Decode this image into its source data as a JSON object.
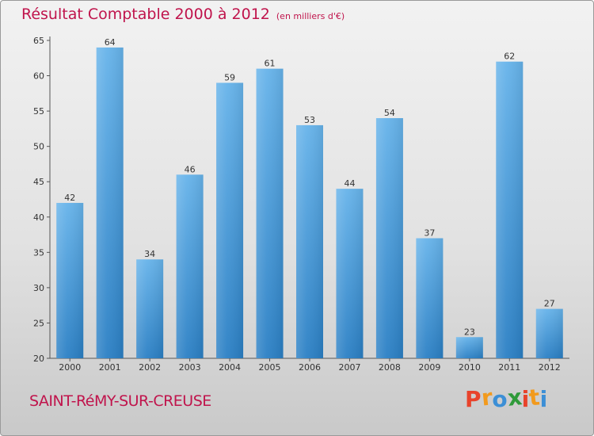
{
  "header": {
    "title": "Résultat Comptable 2000 à 2012",
    "subtitle": "(en milliers d'€)"
  },
  "footer": {
    "commune": "SAINT-RéMY-SUR-CREUSE",
    "logo_letters": [
      "P",
      "r",
      "o",
      "x",
      "i",
      "t",
      "i"
    ],
    "logo_colors": [
      "#e8432b",
      "#f29a1d",
      "#3c8fd6",
      "#2f9a3a",
      "#e8432b",
      "#f29a1d",
      "#3c8fd6"
    ]
  },
  "colors": {
    "bar_light": "#66b3ea",
    "bar_dark": "#2a7fc4",
    "accent": "#c0144c"
  },
  "chart_data": {
    "type": "bar",
    "title": "Résultat Comptable 2000 à 2012",
    "subtitle": "(en milliers d'€)",
    "categories": [
      "2000",
      "2001",
      "2002",
      "2003",
      "2004",
      "2005",
      "2006",
      "2007",
      "2008",
      "2009",
      "2010",
      "2011",
      "2012"
    ],
    "values": [
      42,
      64,
      34,
      46,
      59,
      61,
      53,
      44,
      54,
      37,
      23,
      62,
      27
    ],
    "ylim": [
      20,
      65
    ],
    "yticks": [
      20,
      25,
      30,
      35,
      40,
      45,
      50,
      55,
      60,
      65
    ],
    "grid": false,
    "data_labels": true
  }
}
